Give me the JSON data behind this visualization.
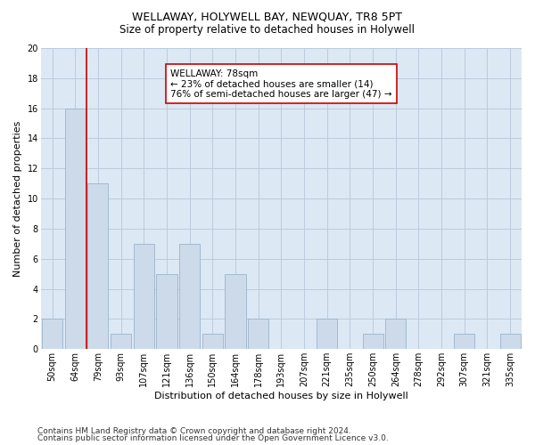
{
  "title": "WELLAWAY, HOLYWELL BAY, NEWQUAY, TR8 5PT",
  "subtitle": "Size of property relative to detached houses in Holywell",
  "xlabel": "Distribution of detached houses by size in Holywell",
  "ylabel": "Number of detached properties",
  "categories": [
    "50sqm",
    "64sqm",
    "79sqm",
    "93sqm",
    "107sqm",
    "121sqm",
    "136sqm",
    "150sqm",
    "164sqm",
    "178sqm",
    "193sqm",
    "207sqm",
    "221sqm",
    "235sqm",
    "250sqm",
    "264sqm",
    "278sqm",
    "292sqm",
    "307sqm",
    "321sqm",
    "335sqm"
  ],
  "values": [
    2,
    16,
    11,
    1,
    7,
    5,
    7,
    1,
    5,
    2,
    0,
    0,
    2,
    0,
    1,
    2,
    0,
    0,
    1,
    0,
    1
  ],
  "bar_color": "#cddaea",
  "bar_edge_color": "#9ab4cc",
  "annotation_text": "WELLAWAY: 78sqm\n← 23% of detached houses are smaller (14)\n76% of semi-detached houses are larger (47) →",
  "annotation_box_color": "#ffffff",
  "annotation_box_edgecolor": "#cc0000",
  "vline_color": "#cc0000",
  "ylim": [
    0,
    20
  ],
  "yticks": [
    0,
    2,
    4,
    6,
    8,
    10,
    12,
    14,
    16,
    18,
    20
  ],
  "grid_color": "#bbccdd",
  "bg_color": "#dce8f4",
  "footer_line1": "Contains HM Land Registry data © Crown copyright and database right 2024.",
  "footer_line2": "Contains public sector information licensed under the Open Government Licence v3.0.",
  "title_fontsize": 9,
  "subtitle_fontsize": 8.5,
  "annotation_fontsize": 7.5,
  "axis_label_fontsize": 8,
  "tick_fontsize": 7,
  "footer_fontsize": 6.5
}
